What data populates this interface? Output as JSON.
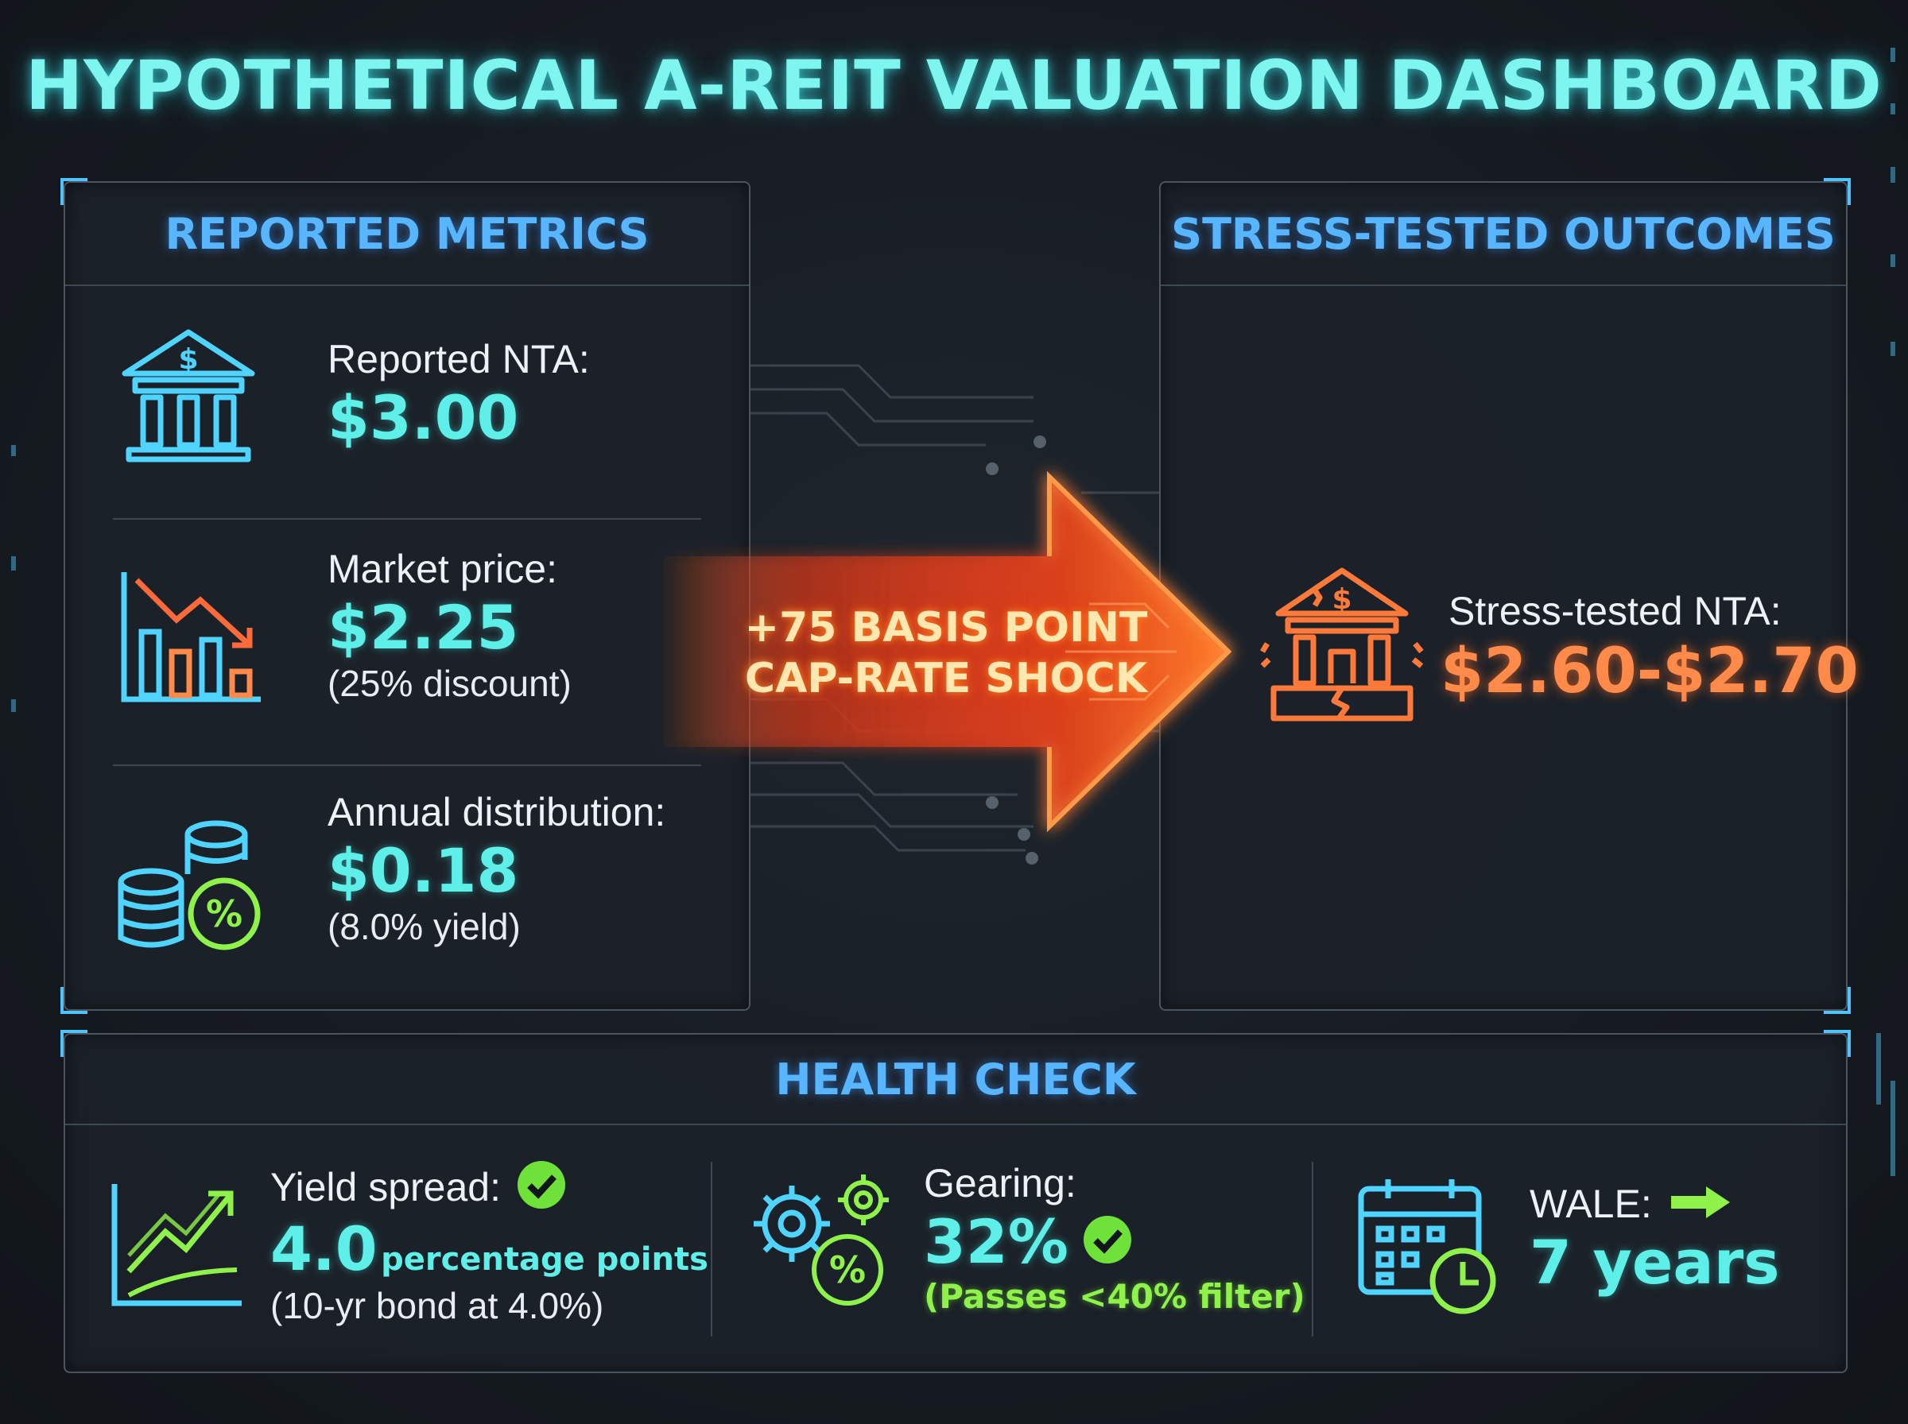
{
  "title": "HYPOTHETICAL A-REIT VALUATION DASHBOARD",
  "reported": {
    "heading": "REPORTED METRICS",
    "nta_label": "Reported NTA:",
    "nta_value": "$3.00",
    "price_label": "Market price:",
    "price_value": "$2.25",
    "price_sub": "(25% discount)",
    "dist_label": "Annual distribution:",
    "dist_value": "$0.18",
    "dist_sub": "(8.0% yield)"
  },
  "shock": {
    "line1": "+75 BASIS POINT",
    "line2": "CAP-RATE SHOCK"
  },
  "stress": {
    "heading": "STRESS-TESTED OUTCOMES",
    "label": "Stress-tested NTA:",
    "value": "$2.60-$2.70"
  },
  "health": {
    "heading": "HEALTH CHECK",
    "spread_label": "Yield spread:",
    "spread_value": "4.0",
    "spread_unit": "percentage points",
    "spread_sub": "(10-yr bond at 4.0%)",
    "gearing_label": "Gearing:",
    "gearing_value": "32%",
    "gearing_sub": "(Passes <40% filter)",
    "wale_label": "WALE:",
    "wale_value": "7 years"
  },
  "colors": {
    "accent_cyan": "#5ef0e8",
    "heading_blue": "#57b6ff",
    "shock_orange": "#ff6a2a",
    "pass_green": "#8ef24a"
  },
  "icons": [
    "bank-icon",
    "declining-bars-icon",
    "coins-percent-icon",
    "arrow-icon",
    "cracked-bank-icon",
    "trend-up-icon",
    "check-icon",
    "gears-percent-icon",
    "calendar-clock-icon",
    "right-arrow-icon"
  ]
}
